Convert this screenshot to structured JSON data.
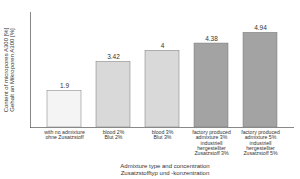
{
  "chart_data": {
    "type": "bar",
    "y_label": "Content of micropores A300 [%]\nGehalt an Mikroporen A300 [%]",
    "x_label": "Admixture type and concentration\nZusatzstofftyp und -konzentration",
    "categories": [
      "with no admixture\nohne Zusatzstoff",
      "blood 2%\nBlut 2%",
      "blood 3%\nBlut 3%",
      "factory produced\nadmixture 3%\nindustriell\nhergestellter\nZusatzstoff 3%",
      "factory produced\nadmixture 5%\nindustriell\nhergestellter\nZusatzstoff 5%"
    ],
    "values": [
      1.9,
      3.42,
      4,
      4.38,
      4.94
    ],
    "colors": [
      "#f4f4f4",
      "#d9d9d9",
      "#d9d9d9",
      "#a3a3a3",
      "#a3a3a3"
    ],
    "ylim": [
      0,
      6
    ],
    "yticks": [],
    "grid": false,
    "data_labels": true,
    "tick_labels": "x"
  }
}
